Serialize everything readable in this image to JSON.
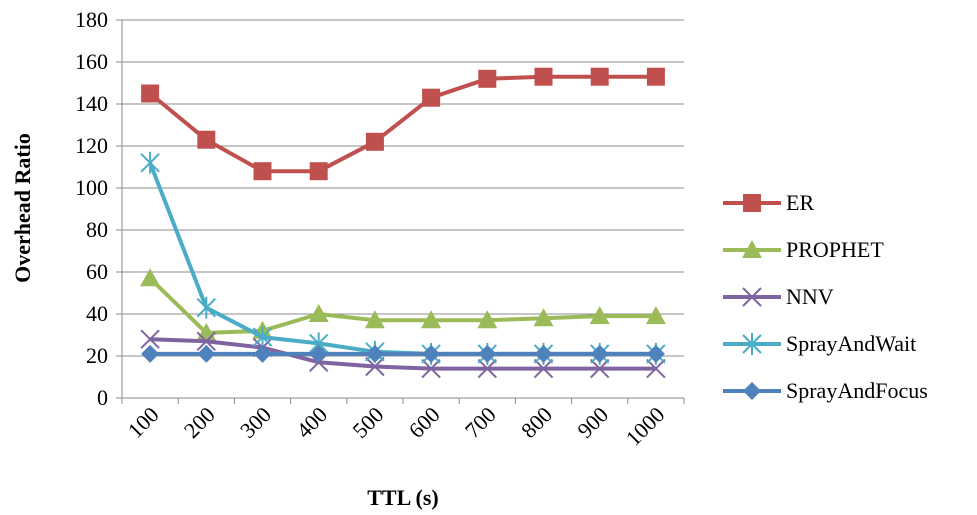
{
  "chart_data": {
    "type": "line",
    "xlabel": "TTL (s)",
    "ylabel": "Overhead Ratio",
    "x": [
      "100",
      "200",
      "300",
      "400",
      "500",
      "600",
      "700",
      "800",
      "900",
      "1000"
    ],
    "ylim": [
      0,
      180
    ],
    "yticks": [
      0,
      20,
      40,
      60,
      80,
      100,
      120,
      140,
      160,
      180
    ],
    "grid": true,
    "legend_position": "right",
    "series": [
      {
        "name": "ER",
        "color": "#C0504D",
        "marker": "square",
        "values": [
          145,
          123,
          108,
          108,
          122,
          143,
          152,
          153,
          153,
          153
        ]
      },
      {
        "name": "PROPHET",
        "color": "#9BBB59",
        "marker": "triangle",
        "values": [
          57,
          31,
          32,
          40,
          37,
          37,
          37,
          38,
          39,
          39
        ]
      },
      {
        "name": "NNV",
        "color": "#8064A2",
        "marker": "x",
        "values": [
          28,
          27,
          24,
          17,
          15,
          14,
          14,
          14,
          14,
          14
        ]
      },
      {
        "name": "SprayAndWait",
        "color": "#4BACC6",
        "marker": "star",
        "values": [
          112,
          43,
          29,
          26,
          22,
          21,
          21,
          21,
          21,
          21
        ]
      },
      {
        "name": "SprayAndFocus",
        "color": "#4F81BD",
        "marker": "diamond",
        "values": [
          21,
          21,
          21,
          21,
          21,
          21,
          21,
          21,
          21,
          21
        ]
      }
    ]
  }
}
